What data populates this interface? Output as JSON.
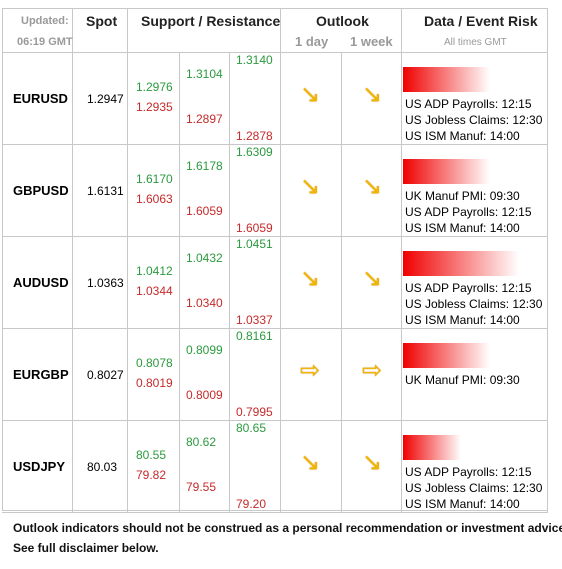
{
  "header": {
    "updated": "Updated:",
    "time": "06:19 GMT",
    "spot": "Spot",
    "support_resistance": "Support / Resistance",
    "outlook": "Outlook",
    "day": "1 day",
    "week": "1 week",
    "data_event_risk": "Data / Event Risk",
    "times": "All times GMT"
  },
  "rows": [
    {
      "pair": "EURUSD",
      "spot": "1.2947",
      "levels": [
        {
          "resistance": "1.2976",
          "support": "1.2935"
        },
        {
          "resistance": "1.3104",
          "support": "1.2897"
        },
        {
          "resistance": "1.3140",
          "support": "1.2878"
        }
      ],
      "outlook": [
        "↘",
        "↘"
      ],
      "risk": 3,
      "events": [
        "US ADP Payrolls: 12:15",
        "US Jobless Claims: 12:30",
        "US ISM Manuf: 14:00"
      ]
    },
    {
      "pair": "GBPUSD",
      "spot": "1.6131",
      "levels": [
        {
          "resistance": "1.6170",
          "support": "1.6063"
        },
        {
          "resistance": "1.6178",
          "support": "1.6059"
        },
        {
          "resistance": "1.6309",
          "support": "1.6059"
        }
      ],
      "outlook": [
        "↘",
        "↘"
      ],
      "risk": 3,
      "events": [
        "UK Manuf PMI: 09:30",
        "US ADP Payrolls: 12:15",
        "US ISM Manuf: 14:00"
      ]
    },
    {
      "pair": "AUDUSD",
      "spot": "1.0363",
      "levels": [
        {
          "resistance": "1.0412",
          "support": "1.0344"
        },
        {
          "resistance": "1.0432",
          "support": "1.0340"
        },
        {
          "resistance": "1.0451",
          "support": "1.0337"
        }
      ],
      "outlook": [
        "↘",
        "↘"
      ],
      "risk": 4,
      "events": [
        "US ADP Payrolls: 12:15",
        "US Jobless Claims: 12:30",
        "US ISM Manuf: 14:00"
      ]
    },
    {
      "pair": "EURGBP",
      "spot": "0.8027",
      "levels": [
        {
          "resistance": "0.8078",
          "support": "0.8019"
        },
        {
          "resistance": "0.8099",
          "support": "0.8009"
        },
        {
          "resistance": "0.8161",
          "support": "0.7995"
        }
      ],
      "outlook": [
        "⇨",
        "⇨"
      ],
      "risk": 3,
      "events": [
        "UK Manuf PMI: 09:30"
      ]
    },
    {
      "pair": "USDJPY",
      "spot": "80.03",
      "levels": [
        {
          "resistance": "80.55",
          "support": "79.82"
        },
        {
          "resistance": "80.62",
          "support": "79.55"
        },
        {
          "resistance": "80.65",
          "support": "79.20"
        }
      ],
      "outlook": [
        "↘",
        "↘"
      ],
      "risk": 2,
      "events": [
        "US ADP Payrolls: 12:15",
        "US Jobless Claims: 12:30",
        "US ISM Manuf: 14:00"
      ]
    }
  ],
  "footer": [
    "Outlook indicators should not be construed as a personal recommendation or investment advice.",
    "See full disclaimer below."
  ]
}
